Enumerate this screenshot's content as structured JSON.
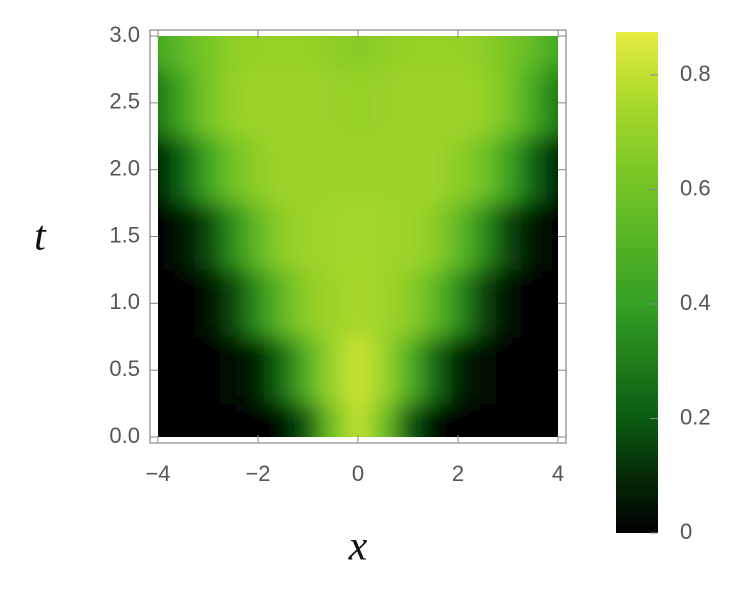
{
  "chart_data": {
    "type": "heatmap",
    "x_label": "x",
    "y_label": "t",
    "x": [
      -4,
      -3.5,
      -3,
      -2.5,
      -2,
      -1.5,
      -1,
      -0.5,
      0,
      0.5,
      1,
      1.5,
      2,
      2.5,
      3,
      3.5,
      4
    ],
    "y": [
      0,
      0.5,
      1,
      1.5,
      2,
      2.5,
      3
    ],
    "z": [
      [
        0,
        0,
        0,
        0,
        0,
        0.02,
        0.2,
        0.6,
        0.8,
        0.6,
        0.2,
        0.02,
        0,
        0,
        0,
        0,
        0
      ],
      [
        0,
        0,
        0,
        0.02,
        0.08,
        0.25,
        0.5,
        0.72,
        0.82,
        0.72,
        0.5,
        0.25,
        0.08,
        0.02,
        0,
        0,
        0
      ],
      [
        0,
        0.01,
        0.04,
        0.15,
        0.35,
        0.55,
        0.68,
        0.72,
        0.75,
        0.72,
        0.68,
        0.55,
        0.35,
        0.15,
        0.04,
        0.01,
        0
      ],
      [
        0.01,
        0.05,
        0.15,
        0.35,
        0.55,
        0.68,
        0.72,
        0.73,
        0.74,
        0.73,
        0.72,
        0.68,
        0.55,
        0.35,
        0.15,
        0.05,
        0.01
      ],
      [
        0.08,
        0.22,
        0.42,
        0.6,
        0.68,
        0.72,
        0.72,
        0.72,
        0.72,
        0.72,
        0.72,
        0.72,
        0.68,
        0.6,
        0.42,
        0.22,
        0.08
      ],
      [
        0.28,
        0.45,
        0.62,
        0.7,
        0.72,
        0.72,
        0.72,
        0.71,
        0.7,
        0.71,
        0.72,
        0.72,
        0.72,
        0.7,
        0.62,
        0.45,
        0.28
      ],
      [
        0.45,
        0.55,
        0.62,
        0.68,
        0.7,
        0.7,
        0.7,
        0.68,
        0.66,
        0.68,
        0.7,
        0.7,
        0.7,
        0.68,
        0.62,
        0.55,
        0.45
      ]
    ],
    "xlim": [
      -4,
      4
    ],
    "ylim": [
      0,
      3
    ],
    "xticks": [
      {
        "value": -4,
        "label": "−4"
      },
      {
        "value": -2,
        "label": "−2"
      },
      0,
      2,
      4
    ],
    "yticks": [
      {
        "value": 0,
        "label": "0.0"
      },
      {
        "value": 0.5,
        "label": "0.5"
      },
      {
        "value": 1,
        "label": "1.0"
      },
      {
        "value": 1.5,
        "label": "1.5"
      },
      {
        "value": 2,
        "label": "2.0"
      },
      {
        "value": 2.5,
        "label": "2.5"
      },
      {
        "value": 3,
        "label": "3.0"
      }
    ],
    "zlim": [
      0,
      0.875
    ],
    "zticks": [
      0,
      0.2,
      0.4,
      0.6,
      0.8
    ],
    "colorscale": [
      [
        0,
        "#000000"
      ],
      [
        0.1,
        "#062a06"
      ],
      [
        0.2,
        "#0b5c12"
      ],
      [
        0.4,
        "#34a024"
      ],
      [
        0.6,
        "#70c325"
      ],
      [
        0.75,
        "#a8d82a"
      ],
      [
        0.875,
        "#e6ec40"
      ]
    ]
  }
}
